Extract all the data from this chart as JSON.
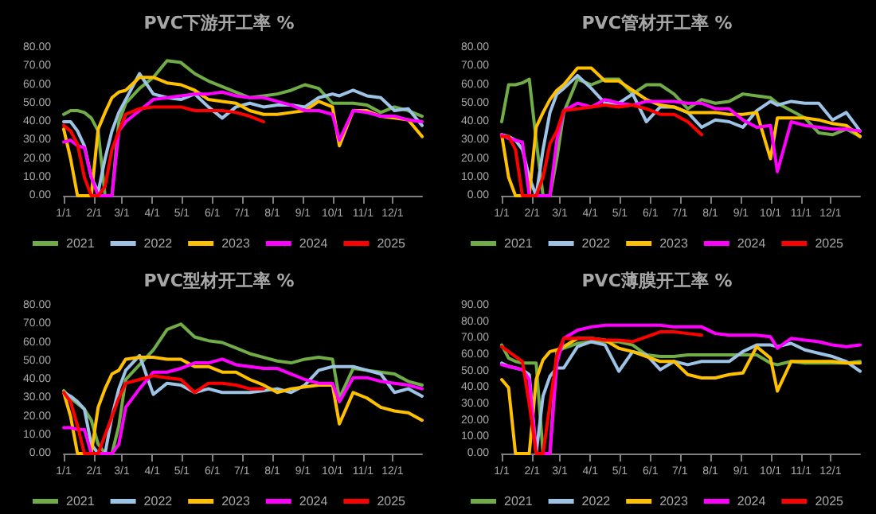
{
  "chart_data": [
    {
      "type": "line",
      "title": "PVC下游开工率 %",
      "legend": "bottom",
      "grid": false,
      "marker": "none",
      "line_style": "solid",
      "x": [
        "--01-01",
        "--01-08",
        "--01-15",
        "--01-22",
        "--01-29",
        "--02-05",
        "--02-12",
        "--02-19",
        "--02-26",
        "--03-05",
        "--03-19",
        "--04-02",
        "--04-16",
        "--04-30",
        "--05-14",
        "--05-28",
        "--06-11",
        "--06-25",
        "--07-09",
        "--07-23",
        "--08-06",
        "--08-20",
        "--09-03",
        "--09-17",
        "--10-01",
        "--10-08",
        "--10-22",
        "--11-05",
        "--11-19",
        "--12-03",
        "--12-17",
        "--12-31"
      ],
      "xlim": [
        "--01-01",
        "--12-31"
      ],
      "xticks": [
        {
          "value": "--01-01",
          "label": "1/1"
        },
        {
          "value": "--02-01",
          "label": "2/1"
        },
        {
          "value": "--03-01",
          "label": "3/1"
        },
        {
          "value": "--04-01",
          "label": "4/1"
        },
        {
          "value": "--05-01",
          "label": "5/1"
        },
        {
          "value": "--06-01",
          "label": "6/1"
        },
        {
          "value": "--07-01",
          "label": "7/1"
        },
        {
          "value": "--08-01",
          "label": "8/1"
        },
        {
          "value": "--09-01",
          "label": "9/1"
        },
        {
          "value": "--10-01",
          "label": "10/1"
        },
        {
          "value": "--11-01",
          "label": "11/1"
        },
        {
          "value": "--12-01",
          "label": "12/1"
        }
      ],
      "ylim": [
        0,
        80
      ],
      "yticks": [
        {
          "value": 0,
          "label": "0.00"
        },
        {
          "value": 10,
          "label": "10.00"
        },
        {
          "value": 20,
          "label": "20.00"
        },
        {
          "value": 30,
          "label": "30.00"
        },
        {
          "value": 40,
          "label": "40.00"
        },
        {
          "value": 50,
          "label": "50.00"
        },
        {
          "value": 60,
          "label": "60.00"
        },
        {
          "value": 70,
          "label": "70.00"
        },
        {
          "value": 80,
          "label": "80.00"
        }
      ],
      "series": [
        {
          "name": "2021",
          "color": "#70ad47",
          "values": [
            44,
            46,
            46,
            45,
            42,
            35,
            0,
            0,
            40,
            50,
            58,
            64,
            73,
            72,
            66,
            62,
            59,
            56,
            53,
            54,
            55,
            57,
            60,
            58,
            50,
            50,
            50,
            49,
            45,
            48,
            46,
            43
          ]
        },
        {
          "name": "2022",
          "color": "#9dc3e6",
          "values": [
            40,
            40,
            35,
            27,
            10,
            2,
            20,
            35,
            45,
            52,
            66,
            55,
            53,
            52,
            55,
            48,
            42,
            48,
            50,
            48,
            49,
            49,
            48,
            53,
            55,
            54,
            57,
            54,
            53,
            46,
            47,
            38
          ]
        },
        {
          "name": "2023",
          "color": "#ffc000",
          "values": [
            36,
            20,
            0,
            0,
            0,
            36,
            45,
            53,
            56,
            57,
            64,
            64,
            61,
            60,
            57,
            52,
            51,
            50,
            46,
            44,
            44,
            45,
            46,
            51,
            48,
            27,
            46,
            46,
            43,
            42,
            41,
            32
          ]
        },
        {
          "name": "2024",
          "color": "#ff00ff",
          "values": [
            29,
            30,
            27,
            26,
            10,
            0,
            0,
            0,
            35,
            40,
            46,
            52,
            53,
            54,
            55,
            55,
            56,
            54,
            53,
            53,
            51,
            49,
            46,
            46,
            44,
            30,
            46,
            45,
            43,
            43,
            41,
            40
          ]
        },
        {
          "name": "2025",
          "color": "#ff0000",
          "values": [
            38,
            35,
            28,
            10,
            0,
            0,
            5,
            25,
            35,
            44,
            47,
            48,
            48,
            48,
            46,
            46,
            46,
            45,
            43,
            40,
            null,
            null,
            null,
            null,
            null,
            null,
            null,
            null,
            null,
            null,
            null,
            null
          ]
        }
      ]
    },
    {
      "type": "line",
      "title": "PVC管材开工率 %",
      "legend": "bottom",
      "grid": false,
      "marker": "none",
      "line_style": "solid",
      "x": [
        "--01-01",
        "--01-08",
        "--01-15",
        "--01-22",
        "--01-29",
        "--02-05",
        "--02-12",
        "--02-19",
        "--02-26",
        "--03-05",
        "--03-19",
        "--04-02",
        "--04-16",
        "--04-30",
        "--05-14",
        "--05-28",
        "--06-11",
        "--06-25",
        "--07-09",
        "--07-23",
        "--08-06",
        "--08-20",
        "--09-03",
        "--09-17",
        "--10-01",
        "--10-08",
        "--10-22",
        "--11-05",
        "--11-19",
        "--12-03",
        "--12-17",
        "--12-31"
      ],
      "xlim": [
        "--01-01",
        "--12-31"
      ],
      "xticks": [
        {
          "value": "--01-01",
          "label": "1/1"
        },
        {
          "value": "--02-01",
          "label": "2/1"
        },
        {
          "value": "--03-01",
          "label": "3/1"
        },
        {
          "value": "--04-01",
          "label": "4/1"
        },
        {
          "value": "--05-01",
          "label": "5/1"
        },
        {
          "value": "--06-01",
          "label": "6/1"
        },
        {
          "value": "--07-01",
          "label": "7/1"
        },
        {
          "value": "--08-01",
          "label": "8/1"
        },
        {
          "value": "--09-01",
          "label": "9/1"
        },
        {
          "value": "--10-01",
          "label": "10/1"
        },
        {
          "value": "--11-01",
          "label": "11/1"
        },
        {
          "value": "--12-01",
          "label": "12/1"
        }
      ],
      "ylim": [
        0,
        80
      ],
      "yticks": [
        {
          "value": 0,
          "label": "0.00"
        },
        {
          "value": 10,
          "label": "10.00"
        },
        {
          "value": 20,
          "label": "20.00"
        },
        {
          "value": 30,
          "label": "30.00"
        },
        {
          "value": 40,
          "label": "40.00"
        },
        {
          "value": 50,
          "label": "50.00"
        },
        {
          "value": 60,
          "label": "60.00"
        },
        {
          "value": 70,
          "label": "70.00"
        },
        {
          "value": 80,
          "label": "80.00"
        }
      ],
      "series": [
        {
          "name": "2021",
          "color": "#70ad47",
          "values": [
            40,
            60,
            60,
            61,
            63,
            30,
            0,
            0,
            20,
            45,
            63,
            60,
            63,
            63,
            55,
            60,
            60,
            55,
            47,
            52,
            50,
            51,
            55,
            54,
            53,
            50,
            46,
            42,
            34,
            33,
            36,
            32
          ]
        },
        {
          "name": "2022",
          "color": "#9dc3e6",
          "values": [
            33,
            32,
            30,
            25,
            10,
            0,
            25,
            45,
            55,
            58,
            65,
            58,
            50,
            50,
            55,
            40,
            48,
            48,
            45,
            37,
            41,
            40,
            37,
            46,
            51,
            49,
            51,
            50,
            50,
            41,
            45,
            35
          ]
        },
        {
          "name": "2023",
          "color": "#ffc000",
          "values": [
            33,
            10,
            0,
            0,
            0,
            37,
            45,
            52,
            57,
            60,
            69,
            69,
            62,
            62,
            57,
            52,
            49,
            48,
            45,
            45,
            45,
            44,
            44,
            45,
            20,
            42,
            42,
            42,
            41,
            39,
            38,
            32
          ]
        },
        {
          "name": "2024",
          "color": "#ff00ff",
          "values": [
            33,
            31,
            30,
            29,
            0,
            0,
            0,
            0,
            30,
            46,
            50,
            48,
            52,
            50,
            49,
            51,
            51,
            51,
            50,
            50,
            47,
            47,
            41,
            37,
            38,
            13,
            40,
            38,
            37,
            36,
            36,
            35
          ]
        },
        {
          "name": "2025",
          "color": "#ff0000",
          "values": [
            32,
            32,
            25,
            0,
            0,
            0,
            10,
            28,
            35,
            46,
            47,
            48,
            49,
            48,
            49,
            47,
            44,
            44,
            40,
            33,
            null,
            null,
            null,
            null,
            null,
            null,
            null,
            null,
            null,
            null,
            null,
            null
          ]
        }
      ]
    },
    {
      "type": "line",
      "title": "PVC型材开工率 %",
      "legend": "bottom",
      "grid": false,
      "marker": "none",
      "line_style": "solid",
      "x": [
        "--01-01",
        "--01-08",
        "--01-15",
        "--01-22",
        "--01-29",
        "--02-05",
        "--02-12",
        "--02-19",
        "--02-26",
        "--03-05",
        "--03-19",
        "--04-02",
        "--04-16",
        "--04-30",
        "--05-14",
        "--05-28",
        "--06-11",
        "--06-25",
        "--07-09",
        "--07-23",
        "--08-06",
        "--08-20",
        "--09-03",
        "--09-17",
        "--10-01",
        "--10-08",
        "--10-22",
        "--11-05",
        "--11-19",
        "--12-03",
        "--12-17",
        "--12-31"
      ],
      "xlim": [
        "--01-01",
        "--12-31"
      ],
      "xticks": [
        {
          "value": "--01-01",
          "label": "1/1"
        },
        {
          "value": "--02-01",
          "label": "2/1"
        },
        {
          "value": "--03-01",
          "label": "3/1"
        },
        {
          "value": "--04-01",
          "label": "4/1"
        },
        {
          "value": "--05-01",
          "label": "5/1"
        },
        {
          "value": "--06-01",
          "label": "6/1"
        },
        {
          "value": "--07-01",
          "label": "7/1"
        },
        {
          "value": "--08-01",
          "label": "8/1"
        },
        {
          "value": "--09-01",
          "label": "9/1"
        },
        {
          "value": "--10-01",
          "label": "10/1"
        },
        {
          "value": "--11-01",
          "label": "11/1"
        },
        {
          "value": "--12-01",
          "label": "12/1"
        }
      ],
      "ylim": [
        0,
        80
      ],
      "yticks": [
        {
          "value": 0,
          "label": "0.00"
        },
        {
          "value": 10,
          "label": "10.00"
        },
        {
          "value": 20,
          "label": "20.00"
        },
        {
          "value": 30,
          "label": "30.00"
        },
        {
          "value": 40,
          "label": "40.00"
        },
        {
          "value": 50,
          "label": "50.00"
        },
        {
          "value": 60,
          "label": "60.00"
        },
        {
          "value": 70,
          "label": "70.00"
        },
        {
          "value": 80,
          "label": "80.00"
        }
      ],
      "series": [
        {
          "name": "2021",
          "color": "#70ad47",
          "values": [
            34,
            30,
            27,
            24,
            18,
            5,
            0,
            0,
            15,
            40,
            48,
            56,
            67,
            70,
            63,
            61,
            60,
            57,
            54,
            52,
            50,
            49,
            51,
            52,
            51,
            30,
            46,
            45,
            44,
            43,
            39,
            37
          ]
        },
        {
          "name": "2022",
          "color": "#9dc3e6",
          "values": [
            33,
            31,
            28,
            24,
            5,
            0,
            0,
            20,
            35,
            45,
            53,
            32,
            38,
            37,
            33,
            35,
            33,
            33,
            33,
            34,
            35,
            33,
            37,
            45,
            47,
            47,
            47,
            45,
            43,
            33,
            35,
            31
          ]
        },
        {
          "name": "2023",
          "color": "#ffc000",
          "values": [
            33,
            20,
            0,
            0,
            0,
            25,
            35,
            43,
            45,
            51,
            52,
            52,
            51,
            51,
            47,
            47,
            44,
            44,
            40,
            37,
            33,
            35,
            36,
            37,
            37,
            16,
            33,
            30,
            25,
            23,
            22,
            18
          ]
        },
        {
          "name": "2024",
          "color": "#ff00ff",
          "values": [
            14,
            14,
            13,
            13,
            0,
            0,
            0,
            0,
            5,
            25,
            35,
            44,
            44,
            46,
            49,
            49,
            51,
            48,
            47,
            46,
            46,
            43,
            40,
            38,
            38,
            28,
            41,
            41,
            39,
            38,
            37,
            35
          ]
        },
        {
          "name": "2025",
          "color": "#ff0000",
          "values": [
            33,
            28,
            15,
            0,
            0,
            0,
            10,
            20,
            30,
            38,
            40,
            42,
            41,
            40,
            33,
            38,
            38,
            37,
            35,
            35,
            null,
            null,
            null,
            null,
            null,
            null,
            null,
            null,
            null,
            null,
            null,
            null
          ]
        }
      ]
    },
    {
      "type": "line",
      "title": "PVC薄膜开工率 %",
      "legend": "bottom",
      "grid": false,
      "marker": "none",
      "line_style": "solid",
      "x": [
        "--01-01",
        "--01-08",
        "--01-15",
        "--01-22",
        "--01-29",
        "--02-05",
        "--02-12",
        "--02-19",
        "--02-26",
        "--03-05",
        "--03-19",
        "--04-02",
        "--04-16",
        "--04-30",
        "--05-14",
        "--05-28",
        "--06-11",
        "--06-25",
        "--07-09",
        "--07-23",
        "--08-06",
        "--08-20",
        "--09-03",
        "--09-17",
        "--10-01",
        "--10-08",
        "--10-22",
        "--11-05",
        "--11-19",
        "--12-03",
        "--12-17",
        "--12-31"
      ],
      "xlim": [
        "--01-01",
        "--12-31"
      ],
      "xticks": [
        {
          "value": "--01-01",
          "label": "1/1"
        },
        {
          "value": "--02-01",
          "label": "2/1"
        },
        {
          "value": "--03-01",
          "label": "3/1"
        },
        {
          "value": "--04-01",
          "label": "4/1"
        },
        {
          "value": "--05-01",
          "label": "5/1"
        },
        {
          "value": "--06-01",
          "label": "6/1"
        },
        {
          "value": "--07-01",
          "label": "7/1"
        },
        {
          "value": "--08-01",
          "label": "8/1"
        },
        {
          "value": "--09-01",
          "label": "9/1"
        },
        {
          "value": "--10-01",
          "label": "10/1"
        },
        {
          "value": "--11-01",
          "label": "11/1"
        },
        {
          "value": "--12-01",
          "label": "12/1"
        }
      ],
      "ylim": [
        0,
        90
      ],
      "yticks": [
        {
          "value": 0,
          "label": "0.00"
        },
        {
          "value": 10,
          "label": "10.00"
        },
        {
          "value": 20,
          "label": "20.00"
        },
        {
          "value": 30,
          "label": "30.00"
        },
        {
          "value": 40,
          "label": "40.00"
        },
        {
          "value": 50,
          "label": "50.00"
        },
        {
          "value": 60,
          "label": "60.00"
        },
        {
          "value": 70,
          "label": "70.00"
        },
        {
          "value": 80,
          "label": "80.00"
        },
        {
          "value": 90,
          "label": "90.00"
        }
      ],
      "series": [
        {
          "name": "2021",
          "color": "#70ad47",
          "values": [
            66,
            58,
            56,
            55,
            55,
            55,
            0,
            0,
            62,
            64,
            67,
            68,
            68,
            68,
            66,
            60,
            59,
            59,
            60,
            60,
            60,
            60,
            60,
            60,
            55,
            54,
            56,
            55,
            55,
            55,
            55,
            56
          ]
        },
        {
          "name": "2022",
          "color": "#9dc3e6",
          "values": [
            55,
            53,
            52,
            51,
            48,
            0,
            35,
            47,
            52,
            52,
            65,
            68,
            66,
            50,
            62,
            60,
            51,
            56,
            54,
            56,
            56,
            56,
            62,
            66,
            66,
            65,
            67,
            63,
            61,
            59,
            56,
            50
          ]
        },
        {
          "name": "2023",
          "color": "#ffc000",
          "values": [
            45,
            40,
            0,
            0,
            0,
            45,
            57,
            62,
            63,
            65,
            70,
            70,
            69,
            64,
            62,
            59,
            56,
            56,
            48,
            46,
            46,
            48,
            49,
            65,
            58,
            38,
            56,
            56,
            56,
            56,
            55,
            55
          ]
        },
        {
          "name": "2024",
          "color": "#ff00ff",
          "values": [
            54,
            53,
            52,
            51,
            45,
            0,
            0,
            0,
            55,
            70,
            75,
            77,
            78,
            78,
            78,
            78,
            78,
            77,
            77,
            77,
            73,
            72,
            72,
            72,
            71,
            64,
            70,
            69,
            68,
            66,
            65,
            66
          ]
        },
        {
          "name": "2025",
          "color": "#ff0000",
          "values": [
            65,
            62,
            59,
            56,
            30,
            0,
            0,
            30,
            60,
            70,
            70,
            70,
            69,
            69,
            68,
            71,
            74,
            74,
            73,
            72,
            null,
            null,
            null,
            null,
            null,
            null,
            null,
            null,
            null,
            null,
            null,
            null
          ]
        }
      ]
    }
  ]
}
